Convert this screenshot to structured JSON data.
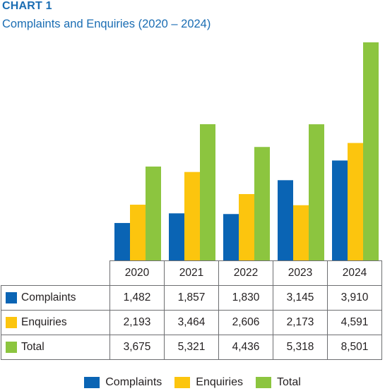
{
  "heading": "CHART 1",
  "title": "Complaints and Enquiries (2020 – 2024)",
  "colors": {
    "complaints": "#0a64b4",
    "enquiries": "#fcc50e",
    "total": "#8cc53f",
    "title": "#1a6db3"
  },
  "chart_data": {
    "type": "bar",
    "categories": [
      "2020",
      "2021",
      "2022",
      "2023",
      "2024"
    ],
    "series": [
      {
        "name": "Complaints",
        "values": [
          1482,
          1857,
          1830,
          3145,
          3910
        ],
        "display": [
          "1,482",
          "1,857",
          "1,830",
          "3,145",
          "3,910"
        ]
      },
      {
        "name": "Enquiries",
        "values": [
          2193,
          3464,
          2606,
          2173,
          4591
        ],
        "display": [
          "2,193",
          "3,464",
          "2,606",
          "2,173",
          "4,591"
        ]
      },
      {
        "name": "Total",
        "values": [
          3675,
          5321,
          4436,
          5318,
          8501
        ],
        "display": [
          "3,675",
          "5,321",
          "4,436",
          "5,318",
          "8,501"
        ]
      }
    ],
    "legend_position": "bottom",
    "grid": false
  }
}
